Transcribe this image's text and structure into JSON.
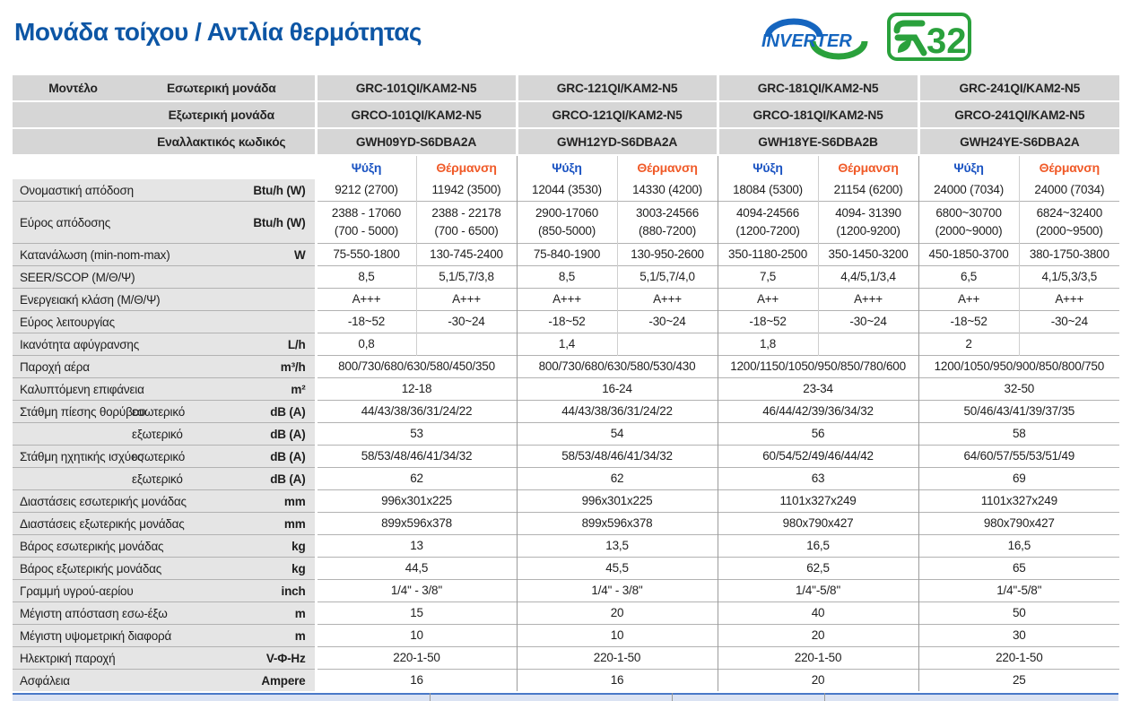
{
  "page": {
    "title": "Μονάδα τοίχου / Αντλία θερμότητας"
  },
  "logos": {
    "inverter_text": "INVERTER",
    "refrigerant_digits": "32",
    "refrigerant_name": "R32"
  },
  "colors": {
    "title_blue": "#0d56a5",
    "cooling_blue": "#1a53c2",
    "heating_orange": "#f05a28",
    "header_gray": "#d6d6d6",
    "label_gray": "#e5e5e5",
    "logo_blue": "#1565bf",
    "logo_green": "#2aa13c",
    "strip_blue": "#4a79c8"
  },
  "table": {
    "header_rows": [
      {
        "label": "Μοντέλο",
        "field_label": "Εσωτερική μονάδα",
        "key": "indoor"
      },
      {
        "label": "",
        "field_label": "Εξωτερική μονάδα",
        "key": "outdoor"
      },
      {
        "label": "",
        "field_label": "Εναλλακτικός κωδικός",
        "key": "code"
      }
    ],
    "models": [
      {
        "indoor": "GRC-101QI/KAM2-N5",
        "outdoor": "GRCO-101QI/KAM2-N5",
        "code": "GWH09YD-S6DBA2A"
      },
      {
        "indoor": "GRC-121QI/KAM2-N5",
        "outdoor": "GRCO-121QI/KAM2-N5",
        "code": "GWH12YD-S6DBA2A"
      },
      {
        "indoor": "GRC-181QI/KAM2-N5",
        "outdoor": "GRCO-181QI/KAM2-N5",
        "code": "GWH18YE-S6DBA2B"
      },
      {
        "indoor": "GRC-241QI/KAM2-N5",
        "outdoor": "GRCO-241QI/KAM2-N5",
        "code": "GWH24YE-S6DBA2A"
      }
    ],
    "subheader": {
      "cooling": "Ψύξη",
      "heating": "Θέρμανση"
    },
    "rows": [
      {
        "label": "Ονομαστική απόδοση",
        "unit": "Btu/h (W)",
        "type": "pairs",
        "values": [
          "9212 (2700)",
          "11942 (3500)",
          "12044 (3530)",
          "14330 (4200)",
          "18084 (5300)",
          "21154 (6200)",
          "24000 (7034)",
          "24000 (7034)"
        ]
      },
      {
        "label": "Εύρος απόδοσης",
        "unit": "Btu/h (W)",
        "type": "pairs",
        "values": [
          "2388 - 17060\n(700 - 5000)",
          "2388 - 22178\n(700 - 6500)",
          "2900-17060\n(850-5000)",
          "3003-24566\n(880-7200)",
          "4094-24566\n(1200-7200)",
          "4094- 31390\n(1200-9200)",
          "6800~30700\n(2000~9000)",
          "6824~32400\n(2000~9500)"
        ]
      },
      {
        "label": "Κατανάλωση (min-nom-max)",
        "unit": "W",
        "type": "pairs",
        "values": [
          "75-550-1800",
          "130-745-2400",
          "75-840-1900",
          "130-950-2600",
          "350-1180-2500",
          "350-1450-3200",
          "450-1850-3700",
          "380-1750-3800"
        ]
      },
      {
        "label": "SEER/SCOP (Μ/Θ/Ψ)",
        "unit": "",
        "type": "pairs",
        "values": [
          "8,5",
          "5,1/5,7/3,8",
          "8,5",
          "5,1/5,7/4,0",
          "7,5",
          "4,4/5,1/3,4",
          "6,5",
          "4,1/5,3/3,5"
        ]
      },
      {
        "label": "Ενεργειακή κλάση (Μ/Θ/Ψ)",
        "unit": "",
        "type": "pairs",
        "values": [
          "A+++",
          "A+++",
          "A+++",
          "A+++",
          "A++",
          "A+++",
          "A++",
          "A+++"
        ]
      },
      {
        "label": "Εύρος λειτουργίας",
        "unit": "",
        "type": "pairs",
        "values": [
          "-18~52",
          "-30~24",
          "-18~52",
          "-30~24",
          "-18~52",
          "-30~24",
          "-18~52",
          "-30~24"
        ]
      },
      {
        "label": "Ικανότητα αφύγρανσης",
        "unit": "L/h",
        "type": "left",
        "values": [
          "0,8",
          "1,4",
          "1,8",
          "2"
        ]
      },
      {
        "label": "Παροχή αέρα",
        "unit": "m³/h",
        "type": "merged",
        "values": [
          "800/730/680/630/580/450/350",
          "800/730/680/630/580/530/430",
          "1200/1150/1050/950/850/780/600",
          "1200/1050/950/900/850/800/750"
        ]
      },
      {
        "label": "Καλυπτόμενη επιφάνεια",
        "unit": "m²",
        "type": "merged",
        "values": [
          "12-18",
          "16-24",
          "23-34",
          "32-50"
        ]
      },
      {
        "label": "Στάθμη πίεσης θορύβου",
        "sublabel": "εσωτερικό",
        "unit": "dB (A)",
        "type": "merged",
        "values": [
          "44/43/38/36/31/24/22",
          "44/43/38/36/31/24/22",
          "46/44/42/39/36/34/32",
          "50/46/43/41/39/37/35"
        ]
      },
      {
        "label": "",
        "sublabel": "εξωτερικό",
        "unit": "dB (A)",
        "type": "merged",
        "values": [
          "53",
          "54",
          "56",
          "58"
        ]
      },
      {
        "label": "Στάθμη ηχητικής ισχύος",
        "sublabel": "εσωτερικό",
        "unit": "dB (A)",
        "type": "merged",
        "values": [
          "58/53/48/46/41/34/32",
          "58/53/48/46/41/34/32",
          "60/54/52/49/46/44/42",
          "64/60/57/55/53/51/49"
        ]
      },
      {
        "label": "",
        "sublabel": "εξωτερικό",
        "unit": "dB (A)",
        "type": "merged",
        "values": [
          "62",
          "62",
          "63",
          "69"
        ]
      },
      {
        "label": "Διαστάσεις εσωτερικής μονάδας",
        "unit": "mm",
        "type": "merged",
        "values": [
          "996x301x225",
          "996x301x225",
          "1101x327x249",
          "1101x327x249"
        ]
      },
      {
        "label": "Διαστάσεις εξωτερικής μονάδας",
        "unit": "mm",
        "type": "merged",
        "values": [
          "899x596x378",
          "899x596x378",
          "980x790x427",
          "980x790x427"
        ]
      },
      {
        "label": "Βάρος εσωτερικής μονάδας",
        "unit": "kg",
        "type": "merged",
        "values": [
          "13",
          "13,5",
          "16,5",
          "16,5"
        ]
      },
      {
        "label": "Βάρος εξωτερικής μονάδας",
        "unit": "kg",
        "type": "merged",
        "values": [
          "44,5",
          "45,5",
          "62,5",
          "65"
        ]
      },
      {
        "label": "Γραμμή υγρού-αερίου",
        "unit": "inch",
        "type": "merged",
        "values": [
          "1/4'' - 3/8''",
          "1/4'' - 3/8''",
          "1/4''-5/8''",
          "1/4''-5/8''"
        ]
      },
      {
        "label": "Μέγιστη απόσταση εσω-έξω",
        "unit": "m",
        "type": "merged",
        "values": [
          "15",
          "20",
          "40",
          "50"
        ]
      },
      {
        "label": "Μέγιστη υψομετρική διαφορά",
        "unit": "m",
        "type": "merged",
        "values": [
          "10",
          "10",
          "20",
          "30"
        ]
      },
      {
        "label": "Ηλεκτρική παροχή",
        "unit": "V-Φ-Hz",
        "type": "merged",
        "values": [
          "220-1-50",
          "220-1-50",
          "220-1-50",
          "220-1-50"
        ]
      },
      {
        "label": "Ασφάλεια",
        "unit": "Ampere",
        "type": "merged",
        "values": [
          "16",
          "16",
          "20",
          "25"
        ]
      }
    ]
  }
}
